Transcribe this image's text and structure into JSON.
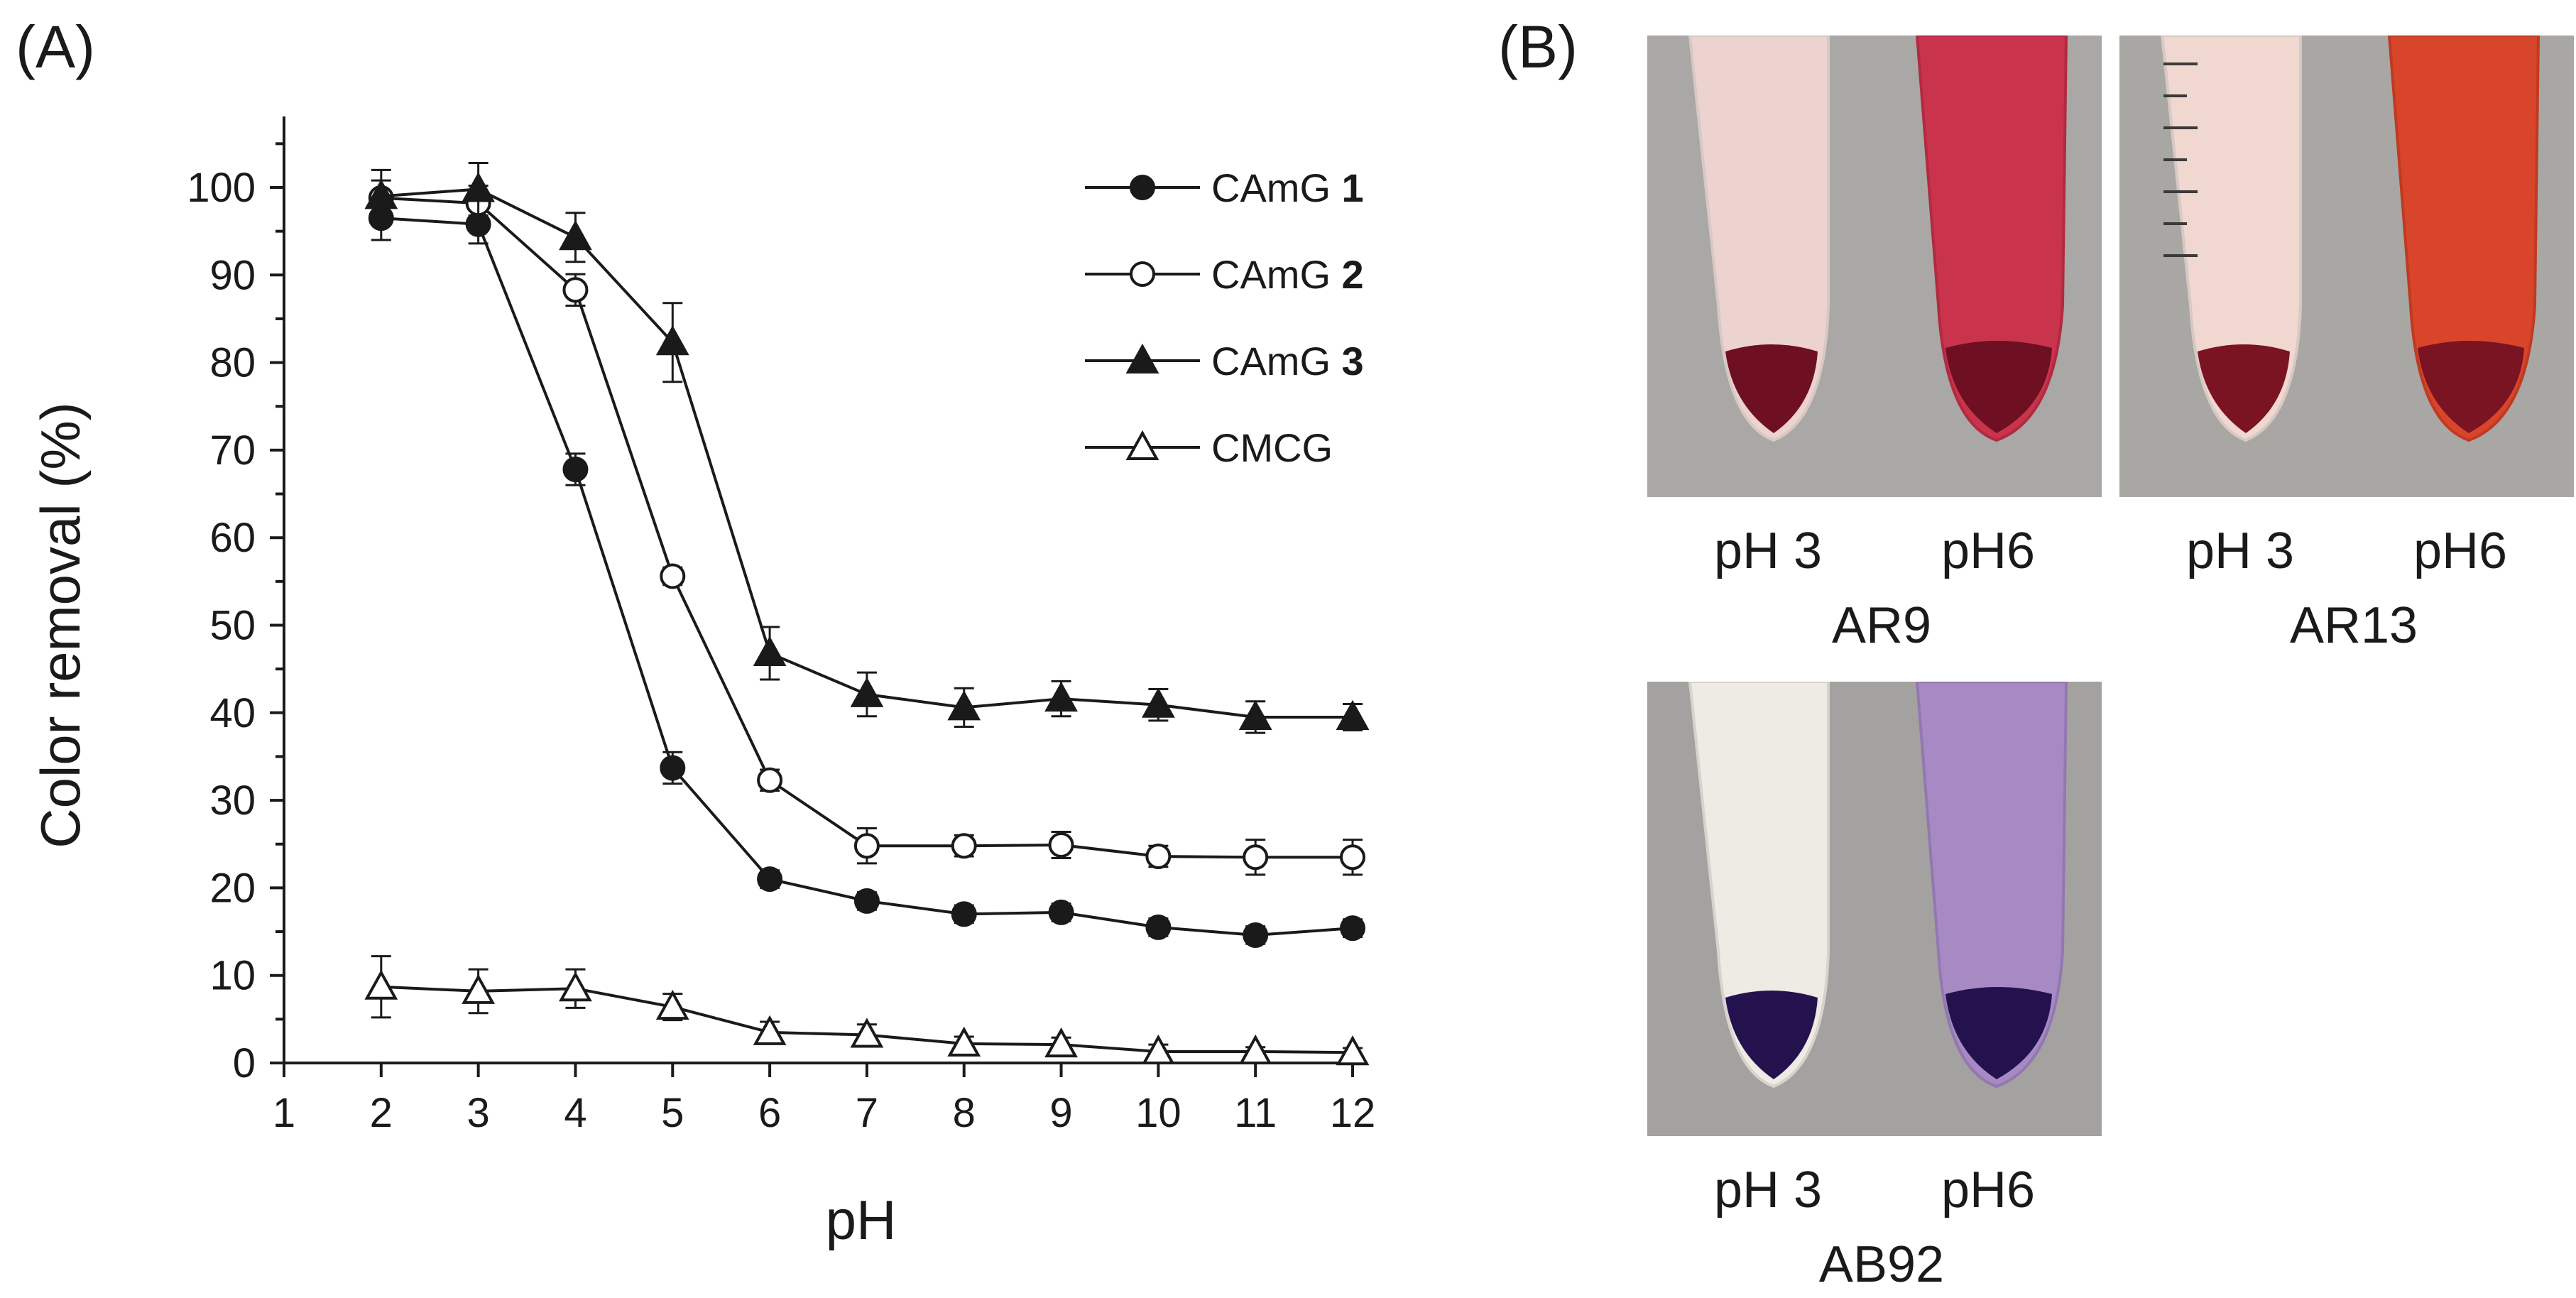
{
  "panels": {
    "a_label": "(A)",
    "b_label": "(B)"
  },
  "chart_data": {
    "type": "line",
    "title": "",
    "xlabel": "pH",
    "ylabel": "Color removal (%)",
    "xlim": [
      1,
      12
    ],
    "ylim": [
      0,
      100
    ],
    "x_ticks": [
      1,
      2,
      3,
      4,
      5,
      6,
      7,
      8,
      9,
      10,
      11,
      12
    ],
    "y_ticks": [
      0,
      10,
      20,
      30,
      40,
      50,
      60,
      70,
      80,
      90,
      100
    ],
    "grid": false,
    "legend_position": "top-right",
    "x": [
      2,
      3,
      4,
      5,
      6,
      7,
      8,
      9,
      10,
      11,
      12
    ],
    "series": [
      {
        "name": "CAmG",
        "name_suffix": "1",
        "marker": "filled-circle",
        "values": [
          96.5,
          95.8,
          67.8,
          33.7,
          21.0,
          18.5,
          17.0,
          17.2,
          15.5,
          14.6,
          15.4
        ],
        "errors": [
          2.5,
          2.2,
          1.8,
          1.8,
          1.0,
          1.0,
          1.0,
          1.0,
          1.0,
          1.0,
          1.0
        ]
      },
      {
        "name": "CAmG",
        "name_suffix": "2",
        "marker": "open-circle",
        "values": [
          98.8,
          98.2,
          88.3,
          55.6,
          32.3,
          24.8,
          24.8,
          24.9,
          23.6,
          23.5,
          23.5
        ],
        "errors": [
          2.0,
          2.0,
          1.8,
          1.0,
          1.2,
          2.0,
          1.2,
          1.5,
          1.2,
          2.0,
          2.0
        ]
      },
      {
        "name": "CAmG",
        "name_suffix": "3",
        "marker": "filled-triangle",
        "values": [
          99.0,
          99.8,
          94.3,
          82.3,
          46.8,
          42.1,
          40.6,
          41.6,
          40.9,
          39.5,
          39.5
        ],
        "errors": [
          3.0,
          3.0,
          2.8,
          4.5,
          3.0,
          2.5,
          2.2,
          2.0,
          1.8,
          1.8,
          1.5
        ]
      },
      {
        "name": "CMCG",
        "name_suffix": "",
        "marker": "open-triangle",
        "values": [
          8.7,
          8.2,
          8.5,
          6.4,
          3.5,
          3.2,
          2.2,
          2.1,
          1.3,
          1.3,
          1.2
        ],
        "errors": [
          3.5,
          2.5,
          2.2,
          1.5,
          1.2,
          1.2,
          0.8,
          0.8,
          0.8,
          0.5,
          0.5
        ]
      }
    ]
  },
  "photos": [
    {
      "dye": "AR9",
      "left_label": "pH 3",
      "right_label": "pH6",
      "left_liquid": "#ecd3cf",
      "right_liquid": "#c9344c",
      "sediment": "#6e0f22",
      "background": "#a9a8a6"
    },
    {
      "dye": "AR13",
      "left_label": "pH 3",
      "right_label": "pH6",
      "left_liquid": "#f0d7d0",
      "right_liquid": "#d8452a",
      "sediment": "#7a1322",
      "background": "#a8a7a4"
    },
    {
      "dye": "AB92",
      "left_label": "pH 3",
      "right_label": "pH6",
      "left_liquid": "#eeeae4",
      "right_liquid": "#a78ac4",
      "sediment": "#24124f",
      "background": "#a4a2a0"
    }
  ]
}
